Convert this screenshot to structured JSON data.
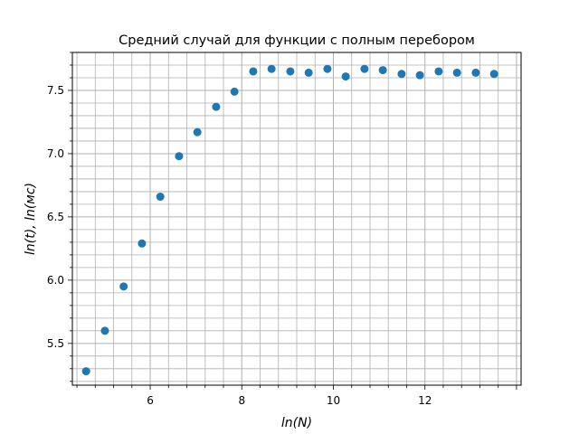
{
  "chart_data": {
    "type": "scatter",
    "title": "Средний случай для функции с полным перебором",
    "xlabel": "ln(N)",
    "ylabel": "ln(t), ln(мс)",
    "xlim": [
      4.3,
      14.1
    ],
    "ylim": [
      5.17,
      7.8
    ],
    "grid": true,
    "minor_grid": true,
    "marker_color": "#1f77b4",
    "xticks": [
      "6",
      "8",
      "10",
      "12"
    ],
    "yticks": [
      "5.5",
      "6.0",
      "6.5",
      "7.0",
      "7.5"
    ],
    "series": [
      {
        "x": [
          4.6,
          5.01,
          5.42,
          5.82,
          6.22,
          6.63,
          7.03,
          7.44,
          7.84,
          8.25,
          8.65,
          9.06,
          9.46,
          9.87,
          10.27,
          10.68,
          11.08,
          11.49,
          11.89,
          12.3,
          12.7,
          13.11,
          13.51
        ],
        "y": [
          5.28,
          5.6,
          5.95,
          6.29,
          6.66,
          6.98,
          7.17,
          7.37,
          7.49,
          7.65,
          7.67,
          7.65,
          7.64,
          7.67,
          7.61,
          7.67,
          7.66,
          7.63,
          7.62,
          7.65,
          7.64,
          7.64,
          7.63
        ]
      }
    ]
  }
}
